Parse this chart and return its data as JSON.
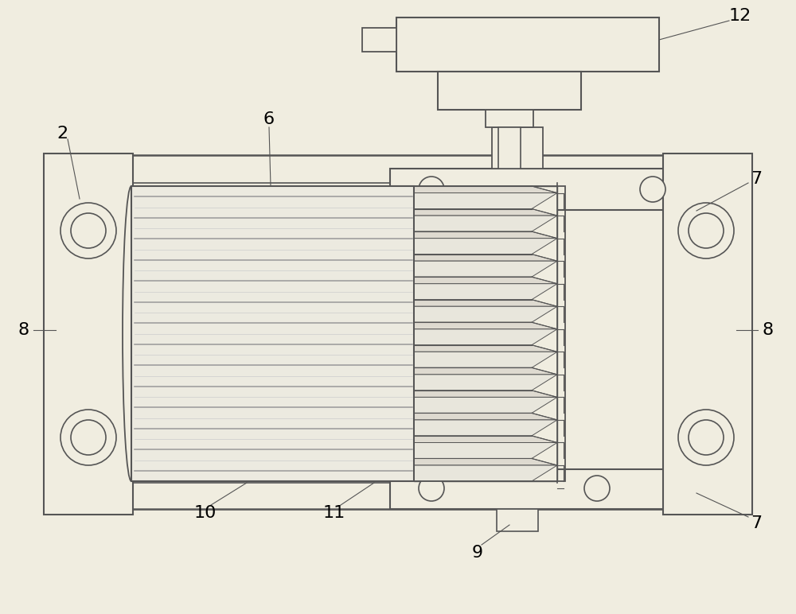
{
  "bg": "#f0ede0",
  "lc": "#555555",
  "lc2": "#999999",
  "lc3": "#cccccc",
  "fc_body": "#f0ede0",
  "fc_cyl": "#eceae2",
  "fc_tooth": "#e0ddd4",
  "fc_tooth2": "#d0cdc4",
  "figw": 10.0,
  "figh": 7.72,
  "dpi": 100
}
